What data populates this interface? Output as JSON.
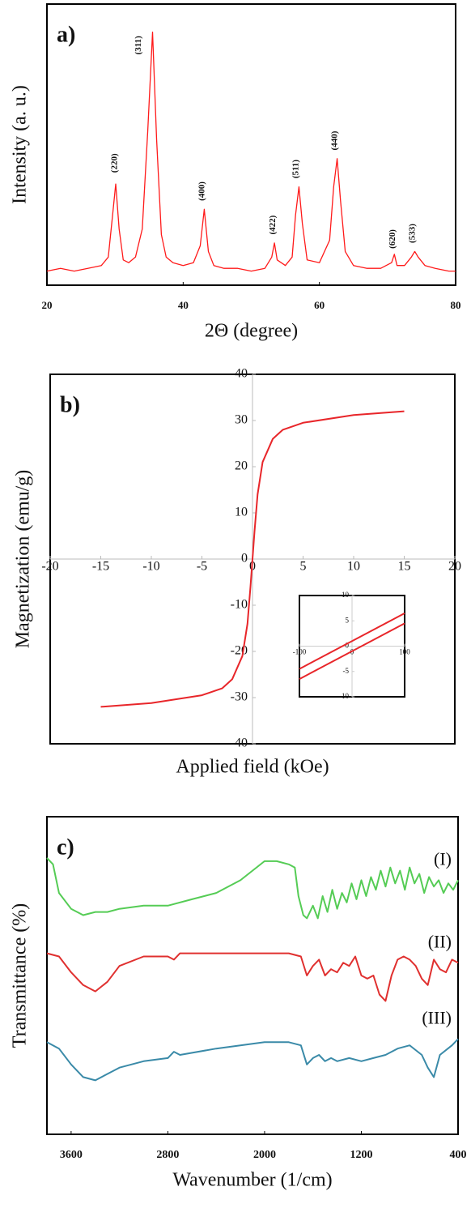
{
  "chart_data": [
    {
      "type": "line",
      "panel_label": "a)",
      "x_label": "2Θ (degree)",
      "y_label": "Intensity (a. u.)",
      "x": [
        20,
        22,
        24,
        26,
        28,
        29,
        29.6,
        30.1,
        30.6,
        31.2,
        32,
        33,
        34,
        34.8,
        35.5,
        36.1,
        36.8,
        37.5,
        38.5,
        40,
        41.5,
        42.5,
        43.1,
        43.7,
        44.5,
        46,
        48,
        50,
        52,
        53,
        53.4,
        53.8,
        55,
        56,
        56.5,
        57,
        57.5,
        58.2,
        60,
        61.5,
        62.1,
        62.6,
        63.1,
        63.8,
        65,
        67,
        69,
        70.6,
        71,
        71.4,
        72.5,
        73.5,
        74,
        74.5,
        75.5,
        77,
        79,
        80
      ],
      "series": [
        {
          "color": "#ff1a1a",
          "values": [
            5,
            6,
            5,
            6,
            7,
            10,
            24,
            36,
            20,
            9,
            8,
            10,
            20,
            55,
            90,
            52,
            18,
            10,
            8,
            7,
            8,
            14,
            27,
            12,
            7,
            6,
            6,
            5,
            6,
            10,
            15,
            9,
            7,
            10,
            25,
            35,
            22,
            9,
            8,
            16,
            35,
            45,
            30,
            12,
            7,
            6,
            6,
            8,
            11,
            7,
            7,
            10,
            12,
            10,
            7,
            6,
            5,
            5
          ]
        }
      ],
      "xlim": [
        20,
        80
      ],
      "xticks": [
        20,
        40,
        60,
        80
      ],
      "ylim": [
        0,
        100
      ],
      "annotations": [
        {
          "text": "(220)",
          "x": 30.0,
          "y": 40
        },
        {
          "text": "(311)",
          "x": 33.5,
          "y": 82
        },
        {
          "text": "(400)",
          "x": 42.8,
          "y": 30
        },
        {
          "text": "(422)",
          "x": 53.2,
          "y": 18
        },
        {
          "text": "(511)",
          "x": 56.6,
          "y": 38
        },
        {
          "text": "(440)",
          "x": 62.3,
          "y": 48
        },
        {
          "text": "(620)",
          "x": 70.8,
          "y": 13
        },
        {
          "text": "(533)",
          "x": 73.7,
          "y": 15
        }
      ]
    },
    {
      "type": "line",
      "panel_label": "b)",
      "x_label": "Applied field (kOe)",
      "y_label": "Magnetization (emu/g)",
      "axes": "cross",
      "x": [
        -15,
        -10,
        -5,
        -3,
        -2,
        -1,
        -0.5,
        -0.2,
        0,
        0.2,
        0.5,
        1,
        2,
        3,
        5,
        10,
        15
      ],
      "series": [
        {
          "color": "#e8262a",
          "values": [
            -32,
            -31.2,
            -29.5,
            -28,
            -26,
            -21,
            -14,
            -6,
            0,
            6,
            14,
            21,
            26,
            28,
            29.5,
            31.2,
            32
          ]
        }
      ],
      "xlim": [
        -20,
        20
      ],
      "xticks": [
        -20,
        -15,
        -10,
        -5,
        0,
        5,
        10,
        15,
        20
      ],
      "ylim": [
        -40,
        40
      ],
      "yticks": [
        -40,
        -30,
        -20,
        -10,
        0,
        10,
        20,
        30,
        40
      ],
      "inset": {
        "x": [
          -100,
          0,
          100
        ],
        "series": [
          {
            "color": "#e8262a",
            "values": [
              -4.5,
              1,
              6.5
            ]
          },
          {
            "color": "#e8262a",
            "values": [
              -6.5,
              -1,
              4.5
            ]
          }
        ],
        "xlim": [
          -100,
          100
        ],
        "xticks": [
          -100,
          0,
          100
        ],
        "ylim": [
          -10,
          10
        ],
        "yticks": [
          -10,
          -5,
          0,
          5,
          10
        ]
      }
    },
    {
      "type": "line",
      "panel_label": "c)",
      "x_label": "Wavenumber (1/cm)",
      "y_label": "Transmittance (%)",
      "series": [
        {
          "name": "(I)",
          "color": "#55cc55",
          "x": [
            3800,
            3750,
            3700,
            3600,
            3500,
            3400,
            3300,
            3200,
            3000,
            2800,
            2600,
            2400,
            2200,
            2000,
            1900,
            1800,
            1750,
            1720,
            1680,
            1650,
            1600,
            1560,
            1520,
            1480,
            1440,
            1400,
            1360,
            1320,
            1280,
            1240,
            1200,
            1160,
            1120,
            1080,
            1040,
            1000,
            960,
            920,
            880,
            840,
            800,
            760,
            720,
            680,
            640,
            600,
            560,
            520,
            480,
            440,
            400
          ],
          "values": [
            87,
            85,
            76,
            71,
            69,
            70,
            70,
            71,
            72,
            72,
            74,
            76,
            80,
            86,
            86,
            85,
            84,
            75,
            69,
            68,
            72,
            68,
            75,
            70,
            77,
            71,
            76,
            73,
            79,
            74,
            80,
            75,
            81,
            77,
            83,
            78,
            84,
            79,
            83,
            77,
            84,
            79,
            82,
            76,
            81,
            78,
            80,
            76,
            79,
            77,
            80
          ]
        },
        {
          "name": "(II)",
          "color": "#e0302f",
          "x": [
            3800,
            3700,
            3600,
            3500,
            3400,
            3300,
            3200,
            3000,
            2800,
            2750,
            2700,
            2400,
            2000,
            1800,
            1700,
            1650,
            1600,
            1550,
            1500,
            1450,
            1400,
            1350,
            1300,
            1250,
            1200,
            1150,
            1100,
            1050,
            1000,
            950,
            900,
            850,
            800,
            750,
            700,
            650,
            600,
            550,
            500,
            450,
            400
          ],
          "values": [
            57,
            56,
            51,
            47,
            45,
            48,
            53,
            56,
            56,
            55,
            57,
            57,
            57,
            57,
            56,
            50,
            53,
            55,
            50,
            52,
            51,
            54,
            53,
            56,
            50,
            49,
            50,
            44,
            42,
            50,
            55,
            56,
            55,
            53,
            49,
            47,
            55,
            52,
            51,
            55,
            54
          ]
        },
        {
          "name": "(III)",
          "color": "#3a8aa8",
          "x": [
            3800,
            3700,
            3600,
            3500,
            3400,
            3300,
            3200,
            3000,
            2800,
            2750,
            2700,
            2400,
            2000,
            1800,
            1700,
            1650,
            1600,
            1550,
            1500,
            1450,
            1400,
            1300,
            1200,
            1100,
            1000,
            900,
            800,
            700,
            650,
            600,
            550,
            450,
            400
          ],
          "values": [
            29,
            27,
            22,
            18,
            17,
            19,
            21,
            23,
            24,
            26,
            25,
            27,
            29,
            29,
            28,
            22,
            24,
            25,
            23,
            24,
            23,
            24,
            23,
            24,
            25,
            27,
            28,
            25,
            21,
            18,
            25,
            28,
            30
          ]
        }
      ],
      "xlim": [
        3800,
        400
      ],
      "xticks": [
        3600,
        2800,
        2000,
        1200,
        400
      ],
      "ylim": [
        0,
        100
      ]
    }
  ]
}
